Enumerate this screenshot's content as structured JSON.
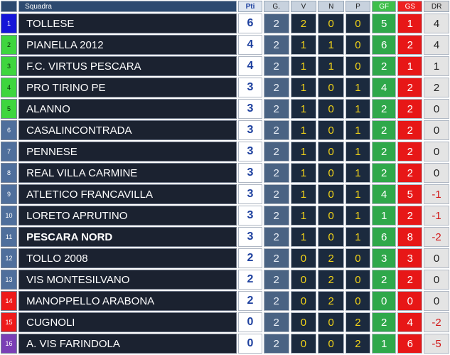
{
  "headers": {
    "pos": "",
    "team": "Squadra",
    "pts": "Pti",
    "g": "G.",
    "v": "V",
    "n": "N",
    "p": "P",
    "gf": "GF",
    "gs": "GS",
    "dr": "DR"
  },
  "colors": {
    "header_dark": "#2d4a70",
    "team_cell": "#1b2230",
    "points_text": "#1c3f9e",
    "goals_for": "#2fa84a",
    "goals_against": "#e71717",
    "position_blue": "#1515d8",
    "position_green": "#3ed63e",
    "position_slate": "#4f6f9c",
    "position_red": "#ee1a1a",
    "position_purple": "#7a3fb5"
  },
  "rows": [
    {
      "pos": "1",
      "team": "TOLLESE",
      "pts": "6",
      "g": "2",
      "v": "2",
      "n": "0",
      "p": "0",
      "gf": "5",
      "gs": "1",
      "dr": "4"
    },
    {
      "pos": "2",
      "team": "PIANELLA 2012",
      "pts": "4",
      "g": "2",
      "v": "1",
      "n": "1",
      "p": "0",
      "gf": "6",
      "gs": "2",
      "dr": "4"
    },
    {
      "pos": "3",
      "team": "F.C. VIRTUS PESCARA",
      "pts": "4",
      "g": "2",
      "v": "1",
      "n": "1",
      "p": "0",
      "gf": "2",
      "gs": "1",
      "dr": "1"
    },
    {
      "pos": "4",
      "team": "PRO TIRINO PE",
      "pts": "3",
      "g": "2",
      "v": "1",
      "n": "0",
      "p": "1",
      "gf": "4",
      "gs": "2",
      "dr": "2"
    },
    {
      "pos": "5",
      "team": "ALANNO",
      "pts": "3",
      "g": "2",
      "v": "1",
      "n": "0",
      "p": "1",
      "gf": "2",
      "gs": "2",
      "dr": "0"
    },
    {
      "pos": "6",
      "team": "CASALINCONTRADA",
      "pts": "3",
      "g": "2",
      "v": "1",
      "n": "0",
      "p": "1",
      "gf": "2",
      "gs": "2",
      "dr": "0"
    },
    {
      "pos": "7",
      "team": "PENNESE",
      "pts": "3",
      "g": "2",
      "v": "1",
      "n": "0",
      "p": "1",
      "gf": "2",
      "gs": "2",
      "dr": "0"
    },
    {
      "pos": "8",
      "team": "REAL VILLA CARMINE",
      "pts": "3",
      "g": "2",
      "v": "1",
      "n": "0",
      "p": "1",
      "gf": "2",
      "gs": "2",
      "dr": "0"
    },
    {
      "pos": "9",
      "team": "ATLETICO FRANCAVILLA",
      "pts": "3",
      "g": "2",
      "v": "1",
      "n": "0",
      "p": "1",
      "gf": "4",
      "gs": "5",
      "dr": "-1"
    },
    {
      "pos": "10",
      "team": "LORETO APRUTINO",
      "pts": "3",
      "g": "2",
      "v": "1",
      "n": "0",
      "p": "1",
      "gf": "1",
      "gs": "2",
      "dr": "-1"
    },
    {
      "pos": "11",
      "team": "PESCARA NORD",
      "pts": "3",
      "g": "2",
      "v": "1",
      "n": "0",
      "p": "1",
      "gf": "6",
      "gs": "8",
      "dr": "-2"
    },
    {
      "pos": "12",
      "team": "TOLLO 2008",
      "pts": "2",
      "g": "2",
      "v": "0",
      "n": "2",
      "p": "0",
      "gf": "3",
      "gs": "3",
      "dr": "0"
    },
    {
      "pos": "13",
      "team": "VIS MONTESILVANO",
      "pts": "2",
      "g": "2",
      "v": "0",
      "n": "2",
      "p": "0",
      "gf": "2",
      "gs": "2",
      "dr": "0"
    },
    {
      "pos": "14",
      "team": "MANOPPELLO ARABONA",
      "pts": "2",
      "g": "2",
      "v": "0",
      "n": "2",
      "p": "0",
      "gf": "0",
      "gs": "0",
      "dr": "0"
    },
    {
      "pos": "15",
      "team": "CUGNOLI",
      "pts": "0",
      "g": "2",
      "v": "0",
      "n": "0",
      "p": "2",
      "gf": "2",
      "gs": "4",
      "dr": "-2"
    },
    {
      "pos": "16",
      "team": "A. VIS FARINDOLA",
      "pts": "0",
      "g": "2",
      "v": "0",
      "n": "0",
      "p": "2",
      "gf": "1",
      "gs": "6",
      "dr": "-5"
    }
  ]
}
